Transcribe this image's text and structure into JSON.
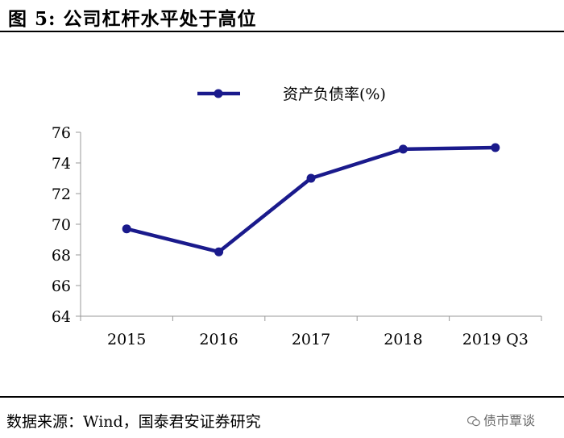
{
  "figure": {
    "title": "图 5:  公司杠杆水平处于高位",
    "source": "数据来源：Wind，国泰君安证券研究",
    "watermark": "债市覃谈"
  },
  "chart_data": {
    "type": "line",
    "categories": [
      "2015",
      "2016",
      "2017",
      "2018",
      "2019 Q3"
    ],
    "series": [
      {
        "name": "资产负债率(%)",
        "values": [
          69.7,
          68.2,
          73.0,
          74.9,
          75.0
        ]
      }
    ],
    "yticks": [
      "64",
      "66",
      "68",
      "70",
      "72",
      "74",
      "76"
    ],
    "ylim": [
      64,
      76
    ],
    "legend_position": "top-center",
    "grid": false,
    "colors": {
      "line": "#1a1a8c"
    }
  }
}
